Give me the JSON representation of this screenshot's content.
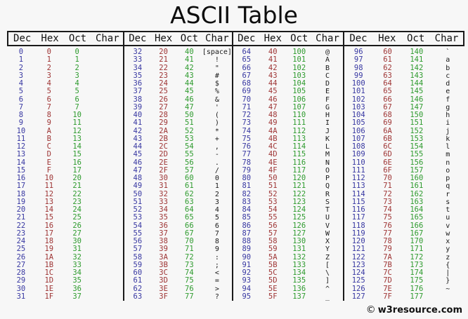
{
  "title": "ASCII Table",
  "footer": {
    "copyright_icon": "©",
    "copyright_text": "w3resource.com"
  },
  "colors": {
    "bg": "#f7f7f7",
    "dec": "#3838a2",
    "hex": "#9e3434",
    "oct": "#2e9b2e",
    "char": "#1a1a1a",
    "line": "#1a1a1a"
  },
  "table": {
    "headers": [
      "Dec",
      "Hex",
      "Oct",
      "Char"
    ],
    "sections": [
      {
        "rows": [
          [
            "0",
            "0",
            "0",
            ""
          ],
          [
            "1",
            "1",
            "1",
            ""
          ],
          [
            "2",
            "2",
            "2",
            ""
          ],
          [
            "3",
            "3",
            "3",
            ""
          ],
          [
            "4",
            "4",
            "4",
            ""
          ],
          [
            "5",
            "5",
            "5",
            ""
          ],
          [
            "6",
            "6",
            "6",
            ""
          ],
          [
            "7",
            "7",
            "7",
            ""
          ],
          [
            "8",
            "8",
            "10",
            ""
          ],
          [
            "9",
            "9",
            "11",
            ""
          ],
          [
            "10",
            "A",
            "12",
            ""
          ],
          [
            "11",
            "B",
            "13",
            ""
          ],
          [
            "12",
            "C",
            "14",
            ""
          ],
          [
            "13",
            "D",
            "15",
            ""
          ],
          [
            "14",
            "E",
            "16",
            ""
          ],
          [
            "15",
            "F",
            "17",
            ""
          ],
          [
            "16",
            "10",
            "20",
            ""
          ],
          [
            "17",
            "11",
            "21",
            ""
          ],
          [
            "18",
            "12",
            "22",
            ""
          ],
          [
            "19",
            "13",
            "23",
            ""
          ],
          [
            "20",
            "14",
            "24",
            ""
          ],
          [
            "21",
            "15",
            "25",
            ""
          ],
          [
            "22",
            "16",
            "26",
            ""
          ],
          [
            "23",
            "17",
            "27",
            ""
          ],
          [
            "24",
            "18",
            "30",
            ""
          ],
          [
            "25",
            "19",
            "31",
            ""
          ],
          [
            "26",
            "1A",
            "32",
            ""
          ],
          [
            "27",
            "1B",
            "33",
            ""
          ],
          [
            "28",
            "1C",
            "34",
            ""
          ],
          [
            "29",
            "1D",
            "35",
            ""
          ],
          [
            "30",
            "1E",
            "36",
            ""
          ],
          [
            "31",
            "1F",
            "37",
            ""
          ]
        ]
      },
      {
        "rows": [
          [
            "32",
            "20",
            "40",
            "[space]"
          ],
          [
            "33",
            "21",
            "41",
            "!"
          ],
          [
            "34",
            "22",
            "42",
            "\""
          ],
          [
            "35",
            "23",
            "43",
            "#"
          ],
          [
            "36",
            "24",
            "44",
            "$"
          ],
          [
            "37",
            "25",
            "45",
            "%"
          ],
          [
            "38",
            "26",
            "46",
            "&"
          ],
          [
            "39",
            "27",
            "47",
            "'"
          ],
          [
            "40",
            "28",
            "50",
            "("
          ],
          [
            "41",
            "29",
            "51",
            ")"
          ],
          [
            "42",
            "2A",
            "52",
            "*"
          ],
          [
            "43",
            "2B",
            "53",
            "+"
          ],
          [
            "44",
            "2C",
            "54",
            ","
          ],
          [
            "45",
            "2D",
            "55",
            "-"
          ],
          [
            "46",
            "2E",
            "56",
            "."
          ],
          [
            "47",
            "2F",
            "57",
            "/"
          ],
          [
            "48",
            "30",
            "60",
            "0"
          ],
          [
            "49",
            "31",
            "61",
            "1"
          ],
          [
            "50",
            "32",
            "62",
            "2"
          ],
          [
            "51",
            "33",
            "63",
            "3"
          ],
          [
            "52",
            "34",
            "64",
            "4"
          ],
          [
            "53",
            "35",
            "65",
            "5"
          ],
          [
            "54",
            "36",
            "66",
            "6"
          ],
          [
            "55",
            "37",
            "67",
            "7"
          ],
          [
            "56",
            "38",
            "70",
            "8"
          ],
          [
            "57",
            "39",
            "71",
            "9"
          ],
          [
            "58",
            "3A",
            "72",
            ":"
          ],
          [
            "59",
            "3B",
            "73",
            ";"
          ],
          [
            "60",
            "3C",
            "74",
            "<"
          ],
          [
            "61",
            "3D",
            "75",
            "="
          ],
          [
            "62",
            "3E",
            "76",
            ">"
          ],
          [
            "63",
            "3F",
            "77",
            "?"
          ]
        ]
      },
      {
        "rows": [
          [
            "64",
            "40",
            "100",
            "@"
          ],
          [
            "65",
            "41",
            "101",
            "A"
          ],
          [
            "66",
            "42",
            "102",
            "B"
          ],
          [
            "67",
            "43",
            "103",
            "C"
          ],
          [
            "68",
            "44",
            "104",
            "D"
          ],
          [
            "69",
            "45",
            "105",
            "E"
          ],
          [
            "70",
            "46",
            "106",
            "F"
          ],
          [
            "71",
            "47",
            "107",
            "G"
          ],
          [
            "72",
            "48",
            "110",
            "H"
          ],
          [
            "73",
            "49",
            "111",
            "I"
          ],
          [
            "74",
            "4A",
            "112",
            "J"
          ],
          [
            "75",
            "4B",
            "113",
            "K"
          ],
          [
            "76",
            "4C",
            "114",
            "L"
          ],
          [
            "77",
            "4D",
            "115",
            "M"
          ],
          [
            "78",
            "4E",
            "116",
            "N"
          ],
          [
            "79",
            "4F",
            "117",
            "O"
          ],
          [
            "80",
            "50",
            "120",
            "P"
          ],
          [
            "81",
            "51",
            "121",
            "Q"
          ],
          [
            "82",
            "52",
            "122",
            "R"
          ],
          [
            "83",
            "53",
            "123",
            "S"
          ],
          [
            "84",
            "54",
            "124",
            "T"
          ],
          [
            "85",
            "55",
            "125",
            "U"
          ],
          [
            "86",
            "56",
            "126",
            "V"
          ],
          [
            "87",
            "57",
            "127",
            "W"
          ],
          [
            "88",
            "58",
            "130",
            "X"
          ],
          [
            "89",
            "59",
            "131",
            "Y"
          ],
          [
            "90",
            "5A",
            "132",
            "Z"
          ],
          [
            "91",
            "5B",
            "133",
            "["
          ],
          [
            "92",
            "5C",
            "134",
            "\\"
          ],
          [
            "93",
            "5D",
            "135",
            "]"
          ],
          [
            "94",
            "5E",
            "136",
            "^"
          ],
          [
            "95",
            "5F",
            "137",
            "_"
          ]
        ]
      },
      {
        "rows": [
          [
            "96",
            "60",
            "140",
            "`"
          ],
          [
            "97",
            "61",
            "141",
            "a"
          ],
          [
            "98",
            "62",
            "142",
            "b"
          ],
          [
            "99",
            "63",
            "143",
            "c"
          ],
          [
            "100",
            "64",
            "144",
            "d"
          ],
          [
            "101",
            "65",
            "145",
            "e"
          ],
          [
            "102",
            "66",
            "146",
            "f"
          ],
          [
            "103",
            "67",
            "147",
            "g"
          ],
          [
            "104",
            "68",
            "150",
            "h"
          ],
          [
            "105",
            "69",
            "151",
            "i"
          ],
          [
            "106",
            "6A",
            "152",
            "j"
          ],
          [
            "107",
            "6B",
            "153",
            "k"
          ],
          [
            "108",
            "6C",
            "154",
            "l"
          ],
          [
            "109",
            "6D",
            "155",
            "m"
          ],
          [
            "110",
            "6E",
            "156",
            "n"
          ],
          [
            "111",
            "6F",
            "157",
            "o"
          ],
          [
            "112",
            "70",
            "160",
            "p"
          ],
          [
            "113",
            "71",
            "161",
            "q"
          ],
          [
            "114",
            "72",
            "162",
            "r"
          ],
          [
            "115",
            "73",
            "163",
            "s"
          ],
          [
            "116",
            "74",
            "164",
            "t"
          ],
          [
            "117",
            "75",
            "165",
            "u"
          ],
          [
            "118",
            "76",
            "166",
            "v"
          ],
          [
            "119",
            "77",
            "167",
            "w"
          ],
          [
            "120",
            "78",
            "170",
            "x"
          ],
          [
            "121",
            "79",
            "171",
            "y"
          ],
          [
            "122",
            "7A",
            "172",
            "z"
          ],
          [
            "123",
            "7B",
            "173",
            "{"
          ],
          [
            "124",
            "7C",
            "174",
            "|"
          ],
          [
            "125",
            "7D",
            "175",
            "}"
          ],
          [
            "126",
            "7E",
            "176",
            "~"
          ],
          [
            "127",
            "7F",
            "177",
            ""
          ]
        ]
      }
    ]
  }
}
